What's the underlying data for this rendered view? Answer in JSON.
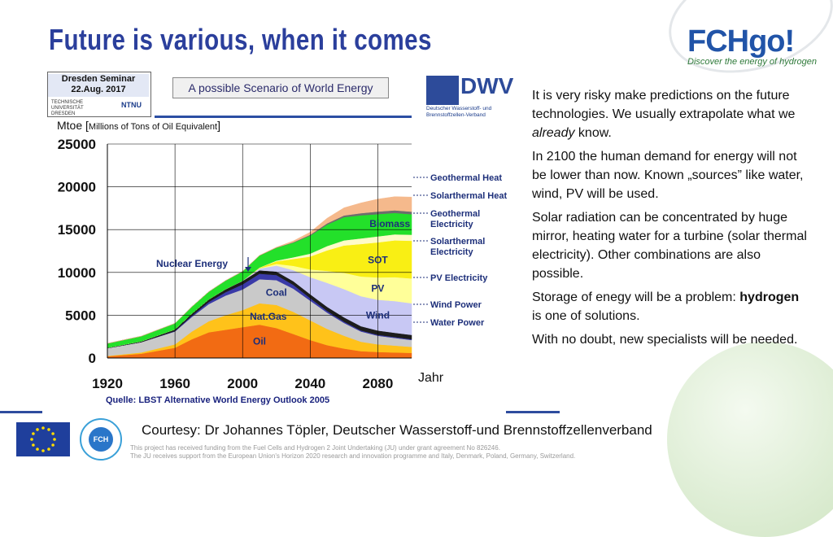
{
  "slide": {
    "title": "Future is various, when it comes",
    "logo": {
      "brand": "FCHgo!",
      "tagline": "Discover the energy of hydrogen"
    },
    "seminar_badge": {
      "line1": "Dresden Seminar",
      "line2": "22.Aug. 2017",
      "university": "TECHNISCHE UNIVERSITÄT DRESDEN",
      "ntnu": "NTNU"
    },
    "scenario_caption": "A possible Scenario of World Energy",
    "dwv_logo": {
      "text": "DWV",
      "sub": "Deutscher Wasserstoff- und Brennstoffzellen-Verband"
    },
    "unit_label_main": "Mtoe",
    "unit_label_detail": "Millions of Tons of Oil Equivalent",
    "x_axis_suffix": "Jahr",
    "source_note": "Quelle: LBST Alternative World Energy Outlook 2005",
    "paragraphs": [
      {
        "before": "It is very risky make predictions on the future technologies. We usually extrapolate what we ",
        "emph": "already",
        "after": " know."
      },
      {
        "before": "In 2100 the human demand for energy will not be lower than now. Known „sources” like water, wind, PV will be used.",
        "emph": "",
        "after": ""
      },
      {
        "before": "Solar radiation can be concentrated by huge mirror, heating water for a turbine (solar thermal electricity). Other combinations are also possible.",
        "emph": "",
        "after": ""
      },
      {
        "before": "Storage of enegy will be a problem: ",
        "strong": "hydrogen",
        "after": " is one of solutions."
      },
      {
        "before": "With no doubt, new specialists will be needed.",
        "emph": "",
        "after": ""
      }
    ],
    "courtesy": "Courtesy: Dr Johannes Töpler, Deutscher Wasserstoff-und Brennstoffzellenverband",
    "funding_line1": "This project has received funding from the Fuel Cells and Hydrogen 2 Joint Undertaking (JU) under grant agreement No 826246.",
    "funding_line2": "The JU receives support from the European Union's Horizon 2020 research and innovation programme and Italy, Denmark, Poland, Germany, Switzerland.",
    "fch_badge_text": "FCH"
  },
  "chart_data": {
    "type": "area",
    "title": "A possible Scenario of World Energy",
    "ylabel": "Mtoe [Millions of Tons of Oil Equivalent]",
    "xlabel": "Jahr",
    "xlim": [
      1920,
      2100
    ],
    "ylim": [
      0,
      25000
    ],
    "x_ticks": [
      1920,
      1960,
      2000,
      2040,
      2080
    ],
    "y_ticks": [
      0,
      5000,
      10000,
      15000,
      20000,
      25000
    ],
    "x": [
      1920,
      1940,
      1960,
      1970,
      1980,
      1990,
      2000,
      2010,
      2020,
      2030,
      2040,
      2050,
      2060,
      2070,
      2080,
      2090,
      2100
    ],
    "series": [
      {
        "name": "Oil",
        "color": "#f26b13",
        "values": [
          200,
          500,
          1200,
          2200,
          3000,
          3300,
          3600,
          3900,
          3500,
          2800,
          2100,
          1500,
          1100,
          800,
          700,
          650,
          600
        ]
      },
      {
        "name": "Nat.Gas",
        "color": "#ffc21a",
        "values": [
          50,
          150,
          400,
          900,
          1300,
          1700,
          2000,
          2500,
          2700,
          2600,
          2300,
          1900,
          1500,
          1100,
          900,
          800,
          700
        ]
      },
      {
        "name": "Coal",
        "color": "#c9c9c9",
        "values": [
          900,
          1200,
          1500,
          1700,
          2000,
          2300,
          2400,
          2800,
          2900,
          2700,
          2300,
          1900,
          1500,
          1200,
          1000,
          900,
          800
        ]
      },
      {
        "name": "Nuclear Energy",
        "color": "#3a3aa8",
        "values": [
          0,
          0,
          50,
          150,
          250,
          400,
          600,
          650,
          600,
          450,
          300,
          200,
          150,
          120,
          110,
          100,
          100
        ]
      },
      {
        "name": "Water Power",
        "color": "#1d1d1d",
        "values": [
          50,
          100,
          200,
          250,
          300,
          350,
          400,
          400,
          400,
          420,
          450,
          480,
          500,
          500,
          500,
          500,
          500
        ]
      },
      {
        "name": "Wind Power",
        "color": "#c8c8f4",
        "values": [
          0,
          0,
          0,
          0,
          0,
          0,
          20,
          200,
          700,
          1300,
          2000,
          2800,
          3300,
          3500,
          3600,
          3700,
          3700
        ]
      },
      {
        "name": "PV Electricity",
        "color": "#ffff99",
        "values": [
          0,
          0,
          0,
          0,
          0,
          0,
          0,
          50,
          200,
          500,
          900,
          1400,
          1900,
          2300,
          2600,
          2800,
          2900
        ]
      },
      {
        "name": "Solarthermal Electricity",
        "color": "#f9ef14",
        "values": [
          0,
          0,
          0,
          0,
          0,
          0,
          0,
          50,
          300,
          800,
          1500,
          2400,
          3200,
          3800,
          4100,
          4300,
          4400
        ]
      },
      {
        "name": "Geothermal Electricity",
        "color": "#fffbc9",
        "values": [
          0,
          0,
          0,
          0,
          0,
          0,
          0,
          20,
          80,
          200,
          350,
          500,
          600,
          650,
          700,
          700,
          700
        ]
      },
      {
        "name": "Biomass",
        "color": "#23e02a",
        "values": [
          500,
          600,
          700,
          800,
          900,
          1000,
          1100,
          1400,
          1500,
          1700,
          2100,
          2500,
          2700,
          2700,
          2600,
          2500,
          2400
        ]
      },
      {
        "name": "Solarthermal Heat",
        "color": "#6d6d6d",
        "values": [
          0,
          0,
          0,
          0,
          0,
          0,
          0,
          10,
          20,
          60,
          100,
          150,
          200,
          250,
          300,
          300,
          300
        ]
      },
      {
        "name": "Geothermal Heat",
        "color": "#f5b98c",
        "values": [
          0,
          0,
          0,
          0,
          0,
          0,
          0,
          20,
          50,
          150,
          300,
          600,
          900,
          1200,
          1450,
          1600,
          1700
        ]
      }
    ],
    "annotations": [
      "Nuclear Energy",
      "Coal",
      "Nat.Gas",
      "Oil",
      "Biomass",
      "SOT",
      "PV",
      "Wind",
      "Geothermal Heat",
      "Solarthermal Heat",
      "Geothermal Electricity",
      "Solarthermal Electricity",
      "PV Electricity",
      "Wind Power",
      "Water Power"
    ],
    "inline_labels": {
      "Biomass": "Biomass",
      "Solarthermal Electricity": "SOT",
      "PV Electricity": "PV",
      "Wind Power": "Wind",
      "Coal": "Coal",
      "Nat.Gas": "Nat.Gas",
      "Oil": "Oil"
    },
    "right_labels": [
      "Geothermal Heat",
      "Solarthermal Heat",
      "Geothermal Electricity",
      "Solarthermal Electricity",
      "PV Electricity",
      "Wind Power",
      "Water Power"
    ],
    "callout": "Nuclear Energy"
  }
}
